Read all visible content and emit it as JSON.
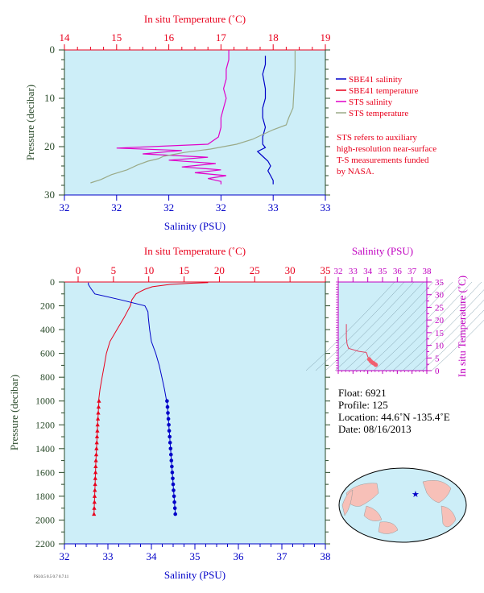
{
  "colors": {
    "plot_bg": "#cdeef8",
    "red": "#e8001c",
    "blue": "#0000c8",
    "magenta": "#e000c8",
    "green_gray": "#9aaa88",
    "axis_label_green": "#2a4a2a",
    "ts_purple": "#c000c0"
  },
  "top_panel": {
    "x_top_title": "In situ Temperature (˚C)",
    "x_bottom_title": "Salinity (PSU)",
    "y_title": "Pressure (decibar)",
    "x_top_ticks": [
      "14",
      "15",
      "16",
      "17",
      "18",
      "19"
    ],
    "x_bottom_ticks": [
      "32",
      "32",
      "32",
      "32",
      "33",
      "33"
    ],
    "y_ticks": [
      "0",
      "10",
      "20",
      "30"
    ],
    "legend": [
      {
        "label": "SBE41 salinity",
        "color": "#0000c8"
      },
      {
        "label": "SBE41 temperature",
        "color": "#e8001c"
      },
      {
        "label": "STS salinity",
        "color": "#e000c8"
      },
      {
        "label": "STS temperature",
        "color": "#9aaa88"
      }
    ],
    "note_lines": [
      "STS refers to auxiliary",
      "high-resolution near-surface",
      "T-S measurements funded",
      "by NASA."
    ]
  },
  "bottom_panel": {
    "x_top_title": "In situ Temperature (˚C)",
    "x_bottom_title": "Salinity (PSU)",
    "y_title": "Pressure (decibar)",
    "x_top_ticks": [
      "0",
      "5",
      "10",
      "15",
      "20",
      "25",
      "30",
      "35"
    ],
    "x_bottom_ticks": [
      "32",
      "33",
      "34",
      "35",
      "36",
      "37",
      "38"
    ],
    "y_ticks": [
      "0",
      "200",
      "400",
      "600",
      "800",
      "1000",
      "1200",
      "1400",
      "1600",
      "1800",
      "2000",
      "2200"
    ]
  },
  "ts_panel": {
    "x_title": "Salinity (PSU)",
    "y_title": "In situ Temperature (˚C)",
    "x_ticks": [
      "32",
      "33",
      "34",
      "35",
      "36",
      "37",
      "38"
    ],
    "y_ticks": [
      "0",
      "5",
      "10",
      "15",
      "20",
      "25",
      "30",
      "35"
    ]
  },
  "float_info": {
    "float": "Float:  6921",
    "profile": "Profile:  125",
    "location": "Location:  44.6˚N  -135.4˚E",
    "date": "Date:  08/16/2013"
  },
  "footnote": "FSI.0.5 0.5 0.7 0.7.11",
  "chart_data": [
    {
      "type": "line",
      "name": "top-panel-near-surface",
      "ylim": [
        30,
        0
      ],
      "temperature_xlim": [
        14,
        19
      ],
      "salinity_xlim": [
        32,
        33
      ],
      "series": [
        {
          "name": "SBE41 salinity",
          "pressure": [
            1.2,
            3,
            5,
            8,
            10,
            12,
            14,
            16,
            18,
            19.5,
            20.2,
            21,
            22,
            23,
            24,
            25,
            26,
            27,
            27.8
          ],
          "salinity": [
            32.77,
            32.77,
            32.76,
            32.77,
            32.77,
            32.76,
            32.76,
            32.77,
            32.76,
            32.76,
            32.77,
            32.74,
            32.76,
            32.78,
            32.79,
            32.78,
            32.79,
            32.8,
            32.8
          ]
        },
        {
          "name": "STS salinity",
          "pressure": [
            0,
            2,
            4,
            6,
            8,
            10,
            12,
            14,
            16,
            18,
            19.5,
            20.3,
            20.8,
            21.5,
            22.2,
            22.8,
            23.5,
            24.2,
            24.8,
            25.4,
            26,
            26.6,
            27.2,
            27.8
          ],
          "salinity": [
            32.63,
            32.63,
            32.62,
            32.62,
            32.61,
            32.62,
            32.61,
            32.6,
            32.6,
            32.59,
            32.55,
            32.2,
            32.45,
            32.3,
            32.55,
            32.4,
            32.58,
            32.45,
            32.6,
            32.5,
            32.62,
            32.55,
            32.6,
            32.6
          ]
        },
        {
          "name": "STS temperature",
          "pressure": [
            0,
            4,
            8,
            12,
            14,
            15.5,
            16.5,
            17.5,
            18.5,
            19.5,
            20.5,
            21.2,
            22,
            22.5,
            23,
            23.8,
            24.8,
            25.8,
            26.8,
            27.5
          ],
          "temperature": [
            18.42,
            18.42,
            18.4,
            18.38,
            18.3,
            18.25,
            18.0,
            17.8,
            17.6,
            17.3,
            16.8,
            16.3,
            15.9,
            15.8,
            15.6,
            15.4,
            15.2,
            14.9,
            14.7,
            14.5
          ]
        }
      ]
    },
    {
      "type": "line",
      "name": "bottom-panel-full-profile",
      "ylim": [
        2200,
        0
      ],
      "temperature_xlim": [
        0,
        35
      ],
      "salinity_xlim": [
        32,
        38
      ],
      "series": [
        {
          "name": "temperature",
          "pressure": [
            5,
            10,
            20,
            40,
            60,
            80,
            100,
            150,
            200,
            300,
            400,
            500,
            600,
            700,
            800,
            900,
            1000
          ],
          "temperature": [
            18.4,
            16,
            13,
            10.5,
            9.5,
            8.8,
            8.2,
            7.6,
            7.4,
            6.5,
            5.5,
            4.5,
            4.0,
            3.7,
            3.4,
            3.1,
            2.9
          ]
        },
        {
          "name": "salinity",
          "pressure": [
            5,
            20,
            50,
            100,
            150,
            200,
            250,
            300,
            400,
            500,
            600,
            700,
            800,
            900,
            1000
          ],
          "salinity": [
            32.55,
            32.55,
            32.6,
            32.7,
            33.3,
            33.85,
            33.92,
            33.93,
            33.96,
            34.0,
            34.1,
            34.18,
            34.24,
            34.3,
            34.35
          ]
        },
        {
          "name": "temperature-bottle-samples",
          "pressure": [
            1000,
            1050,
            1100,
            1150,
            1200,
            1250,
            1300,
            1350,
            1400,
            1450,
            1500,
            1550,
            1600,
            1650,
            1700,
            1750,
            1800,
            1850,
            1900,
            1950
          ],
          "temperature": [
            2.95,
            2.9,
            2.85,
            2.8,
            2.76,
            2.72,
            2.68,
            2.64,
            2.6,
            2.56,
            2.52,
            2.49,
            2.46,
            2.43,
            2.4,
            2.37,
            2.34,
            2.31,
            2.28,
            2.25
          ]
        },
        {
          "name": "salinity-bottle-samples",
          "pressure": [
            1000,
            1050,
            1100,
            1150,
            1200,
            1250,
            1300,
            1350,
            1400,
            1450,
            1500,
            1550,
            1600,
            1650,
            1700,
            1750,
            1800,
            1850,
            1900,
            1950
          ],
          "salinity": [
            34.36,
            34.37,
            34.38,
            34.39,
            34.4,
            34.41,
            34.42,
            34.43,
            34.44,
            34.45,
            34.46,
            34.47,
            34.48,
            34.49,
            34.5,
            34.51,
            34.52,
            34.53,
            34.54,
            34.55
          ]
        }
      ]
    },
    {
      "type": "line",
      "name": "ts-diagram",
      "xlim": [
        32,
        38
      ],
      "ylim": [
        0,
        35
      ],
      "series": [
        {
          "name": "T-S curve",
          "salinity": [
            32.55,
            32.55,
            32.6,
            32.7,
            33.4,
            33.9,
            33.95,
            34.0,
            34.1,
            34.2,
            34.3,
            34.4,
            34.5,
            34.55
          ],
          "temperature": [
            18.4,
            13,
            10.5,
            8.8,
            7.6,
            7.2,
            6.4,
            5.5,
            4.5,
            3.8,
            3.2,
            2.9,
            2.5,
            2.25
          ]
        }
      ]
    }
  ]
}
